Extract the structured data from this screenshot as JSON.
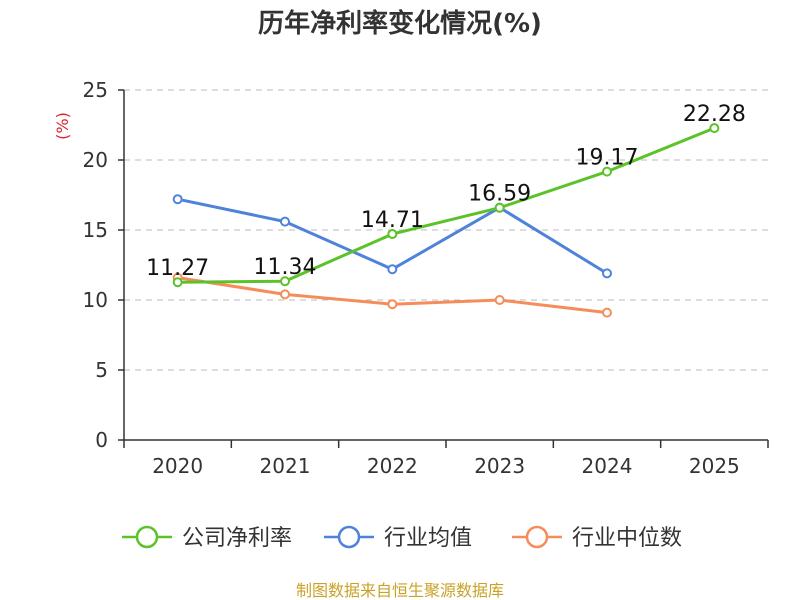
{
  "colors": {
    "net_margin": "#5cc22a",
    "industry_avg": "#4f82db",
    "industry_median": "#f58d5a",
    "unit": "#d9242a",
    "source": "#c9a227"
  },
  "chart_data": {
    "type": "line",
    "title": "历年净利率变化情况(%)",
    "ylabel": "(%)",
    "xlabel": "",
    "categories": [
      "2020",
      "2021",
      "2022",
      "2023",
      "2024",
      "2025"
    ],
    "ylim": [
      0,
      25
    ],
    "yticks": [
      0,
      5,
      10,
      15,
      20,
      25
    ],
    "grid": true,
    "legend_position": "bottom",
    "series": [
      {
        "name": "公司净利率",
        "color_key": "net_margin",
        "values": [
          11.27,
          11.34,
          14.71,
          16.59,
          19.17,
          22.28
        ],
        "labels": [
          "11.27",
          "11.34",
          "14.71",
          "16.59",
          "19.17",
          "22.28"
        ]
      },
      {
        "name": "行业均值",
        "color_key": "industry_avg",
        "values": [
          17.2,
          15.6,
          12.2,
          16.6,
          11.9,
          null
        ]
      },
      {
        "name": "行业中位数",
        "color_key": "industry_median",
        "values": [
          11.6,
          10.4,
          9.7,
          10.0,
          9.1,
          null
        ]
      }
    ]
  },
  "footer": {
    "source": "制图数据来自恒生聚源数据库"
  }
}
